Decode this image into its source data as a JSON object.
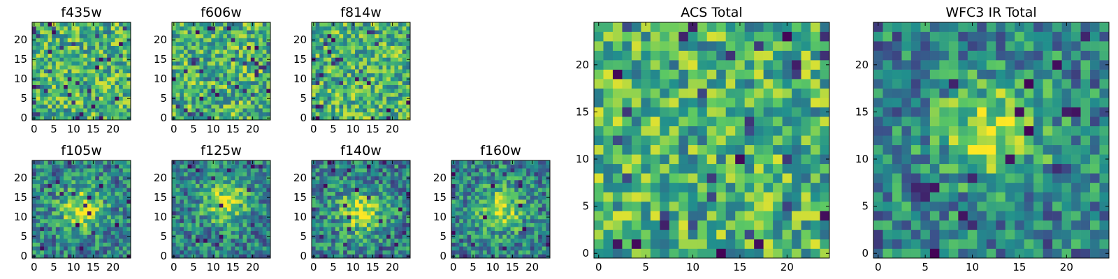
{
  "figure": {
    "grid_size": 25,
    "colormap": [
      "#440154",
      "#3b528b",
      "#21908d",
      "#5dc963",
      "#fde725"
    ],
    "frame_color": "#000000"
  },
  "chart_data": [
    {
      "type": "heatmap",
      "title": "f435w",
      "x_ticks": [
        "0",
        "5",
        "10",
        "15",
        "20"
      ],
      "y_ticks": [
        "0",
        "5",
        "10",
        "15",
        "20"
      ],
      "xlim": [
        0,
        25
      ],
      "ylim": [
        0,
        25
      ],
      "pattern": "noise",
      "seed": 11
    },
    {
      "type": "heatmap",
      "title": "f606w",
      "x_ticks": [
        "0",
        "5",
        "10",
        "15",
        "20"
      ],
      "y_ticks": [
        "0",
        "5",
        "10",
        "15",
        "20"
      ],
      "xlim": [
        0,
        25
      ],
      "ylim": [
        0,
        25
      ],
      "pattern": "noise",
      "seed": 23
    },
    {
      "type": "heatmap",
      "title": "f814w",
      "x_ticks": [
        "0",
        "5",
        "10",
        "15",
        "20"
      ],
      "y_ticks": [
        "0",
        "5",
        "10",
        "15",
        "20"
      ],
      "xlim": [
        0,
        25
      ],
      "ylim": [
        0,
        25
      ],
      "pattern": "noise",
      "seed": 37
    },
    {
      "type": "heatmap",
      "title": "f105w",
      "x_ticks": [
        "0",
        "5",
        "10",
        "15",
        "20"
      ],
      "y_ticks": [
        "0",
        "5",
        "10",
        "15",
        "20"
      ],
      "xlim": [
        0,
        25
      ],
      "ylim": [
        0,
        25
      ],
      "pattern": "blob",
      "center": [
        12,
        12
      ],
      "seed": 41
    },
    {
      "type": "heatmap",
      "title": "f125w",
      "x_ticks": [
        "0",
        "5",
        "10",
        "15",
        "20"
      ],
      "y_ticks": [
        "0",
        "5",
        "10",
        "15",
        "20"
      ],
      "xlim": [
        0,
        25
      ],
      "ylim": [
        0,
        25
      ],
      "pattern": "blob",
      "center": [
        13,
        14
      ],
      "seed": 53
    },
    {
      "type": "heatmap",
      "title": "f140w",
      "x_ticks": [
        "0",
        "5",
        "10",
        "15",
        "20"
      ],
      "y_ticks": [
        "0",
        "5",
        "10",
        "15",
        "20"
      ],
      "xlim": [
        0,
        25
      ],
      "ylim": [
        0,
        25
      ],
      "pattern": "blob",
      "center": [
        12,
        11
      ],
      "seed": 67
    },
    {
      "type": "heatmap",
      "title": "f160w",
      "x_ticks": [
        "0",
        "5",
        "10",
        "15",
        "20"
      ],
      "y_ticks": [
        "0",
        "5",
        "10",
        "15",
        "20"
      ],
      "xlim": [
        0,
        25
      ],
      "ylim": [
        0,
        25
      ],
      "pattern": "blob",
      "center": [
        12,
        12
      ],
      "seed": 79
    },
    {
      "type": "heatmap",
      "title": "ACS Total",
      "x_ticks": [
        "0",
        "5",
        "10",
        "15",
        "20"
      ],
      "y_ticks": [
        "0",
        "5",
        "10",
        "15",
        "20"
      ],
      "xlim": [
        0,
        25
      ],
      "ylim": [
        0,
        25
      ],
      "pattern": "noise",
      "seed": 97
    },
    {
      "type": "heatmap",
      "title": "WFC3 IR Total",
      "x_ticks": [
        "0",
        "5",
        "10",
        "15",
        "20"
      ],
      "y_ticks": [
        "0",
        "5",
        "10",
        "15",
        "20"
      ],
      "xlim": [
        0,
        25
      ],
      "ylim": [
        0,
        25
      ],
      "pattern": "blob",
      "center": [
        12,
        13
      ],
      "seed": 101
    }
  ]
}
